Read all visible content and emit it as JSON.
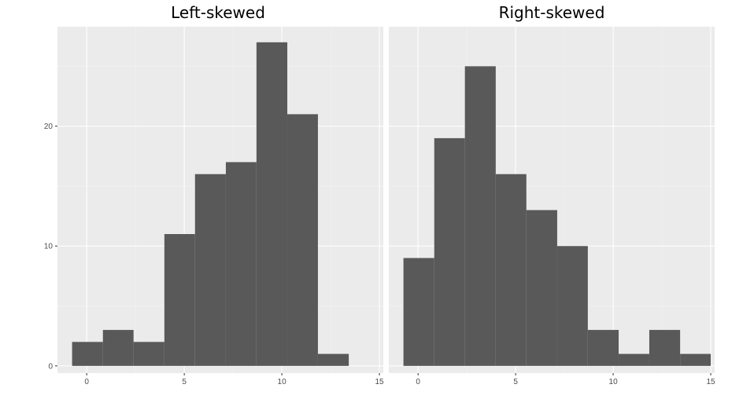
{
  "chart_data": [
    {
      "type": "bar",
      "title": "Left-skewed",
      "xlabel": "",
      "ylabel": "",
      "xlim": [
        -1.5,
        15.2
      ],
      "ylim": [
        -0.6,
        28.3
      ],
      "x_ticks": [
        0,
        5,
        10,
        15
      ],
      "y_ticks": [
        0,
        10,
        20
      ],
      "grid": true,
      "bins": [
        {
          "x0": -0.75,
          "x1": 0.83,
          "count": 2
        },
        {
          "x0": 0.83,
          "x1": 2.4,
          "count": 3
        },
        {
          "x0": 2.4,
          "x1": 3.98,
          "count": 2
        },
        {
          "x0": 3.98,
          "x1": 5.55,
          "count": 11
        },
        {
          "x0": 5.55,
          "x1": 7.13,
          "count": 16
        },
        {
          "x0": 7.13,
          "x1": 8.7,
          "count": 17
        },
        {
          "x0": 8.7,
          "x1": 10.28,
          "count": 27
        },
        {
          "x0": 10.28,
          "x1": 11.85,
          "count": 21
        },
        {
          "x0": 11.85,
          "x1": 13.43,
          "count": 1
        }
      ]
    },
    {
      "type": "bar",
      "title": "Right-skewed",
      "xlabel": "",
      "ylabel": "",
      "xlim": [
        -1.5,
        15.2
      ],
      "ylim": [
        -0.6,
        28.3
      ],
      "x_ticks": [
        0,
        5,
        10,
        15
      ],
      "y_ticks": [
        0,
        10,
        20
      ],
      "grid": true,
      "bins": [
        {
          "x0": -0.75,
          "x1": 0.83,
          "count": 9
        },
        {
          "x0": 0.83,
          "x1": 2.4,
          "count": 19
        },
        {
          "x0": 2.4,
          "x1": 3.98,
          "count": 25
        },
        {
          "x0": 3.98,
          "x1": 5.55,
          "count": 16
        },
        {
          "x0": 5.55,
          "x1": 7.13,
          "count": 13
        },
        {
          "x0": 7.13,
          "x1": 8.7,
          "count": 10
        },
        {
          "x0": 8.7,
          "x1": 10.28,
          "count": 3
        },
        {
          "x0": 10.28,
          "x1": 11.85,
          "count": 1
        },
        {
          "x0": 11.85,
          "x1": 13.43,
          "count": 3
        },
        {
          "x0": 13.43,
          "x1": 15.0,
          "count": 1
        }
      ]
    }
  ]
}
